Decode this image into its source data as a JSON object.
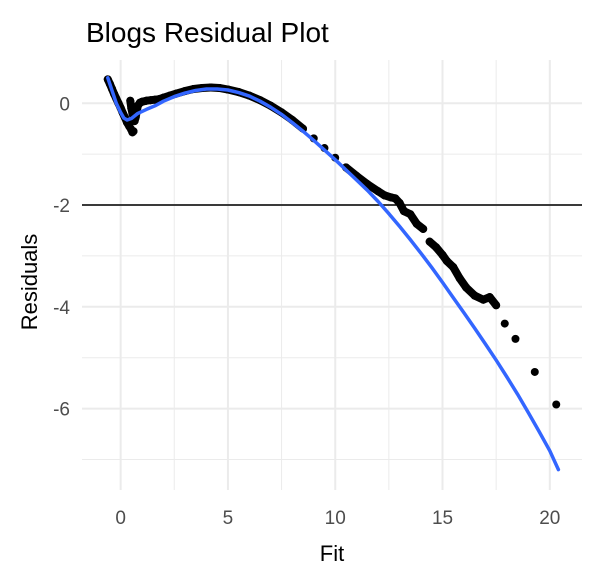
{
  "chart_data": {
    "type": "scatter",
    "title": "Blogs Residual Plot",
    "xlabel": "Fit",
    "ylabel": "Residuals",
    "xlim": [
      -1.8,
      21.5
    ],
    "ylim": [
      -7.6,
      0.85
    ],
    "x_ticks": [
      0,
      5,
      10,
      15,
      20
    ],
    "y_ticks": [
      0,
      -2,
      -4,
      -6
    ],
    "grid": true,
    "reference_line": {
      "y": -2,
      "color": "#000000"
    },
    "colors": {
      "points": "#000000",
      "smooth": "#3366FF",
      "grid": "#EBEBEB"
    },
    "series": [
      {
        "type": "scatter",
        "points": [
          [
            -0.6,
            0.47
          ],
          [
            -0.5,
            0.38
          ],
          [
            -0.4,
            0.28
          ],
          [
            -0.3,
            0.18
          ],
          [
            -0.2,
            0.09
          ],
          [
            -0.1,
            0.0
          ],
          [
            0.0,
            -0.09
          ],
          [
            0.1,
            -0.19
          ],
          [
            0.2,
            -0.28
          ],
          [
            0.3,
            -0.38
          ],
          [
            0.4,
            -0.45
          ],
          [
            0.5,
            -0.52
          ],
          [
            0.55,
            -0.57
          ],
          [
            0.6,
            -0.55
          ],
          [
            0.45,
            0.05
          ],
          [
            0.5,
            -0.1
          ],
          [
            0.55,
            -0.2
          ],
          [
            0.65,
            -0.35
          ],
          [
            0.7,
            -0.28
          ],
          [
            0.8,
            -0.05
          ],
          [
            0.9,
            0.01
          ],
          [
            1.0,
            0.03
          ],
          [
            1.2,
            0.05
          ],
          [
            1.4,
            0.06
          ],
          [
            1.6,
            0.07
          ],
          [
            1.8,
            0.08
          ],
          [
            2.0,
            0.11
          ],
          [
            2.3,
            0.15
          ],
          [
            2.6,
            0.19
          ],
          [
            3.0,
            0.24
          ],
          [
            3.4,
            0.28
          ],
          [
            3.8,
            0.3
          ],
          [
            4.2,
            0.31
          ],
          [
            4.6,
            0.3
          ],
          [
            5.0,
            0.27
          ],
          [
            5.5,
            0.22
          ],
          [
            6.0,
            0.15
          ],
          [
            6.5,
            0.06
          ],
          [
            7.0,
            -0.05
          ],
          [
            7.5,
            -0.18
          ],
          [
            8.0,
            -0.33
          ],
          [
            8.5,
            -0.5
          ],
          [
            9.0,
            -0.69
          ],
          [
            9.5,
            -0.88
          ],
          [
            10.0,
            -1.07
          ],
          [
            10.5,
            -1.26
          ],
          [
            11.0,
            -1.43
          ],
          [
            11.5,
            -1.59
          ],
          [
            12.0,
            -1.73
          ],
          [
            12.3,
            -1.81
          ],
          [
            12.6,
            -1.85
          ],
          [
            12.8,
            -1.87
          ],
          [
            13.0,
            -1.96
          ],
          [
            13.2,
            -2.12
          ],
          [
            13.5,
            -2.18
          ],
          [
            13.8,
            -2.37
          ],
          [
            14.1,
            -2.47
          ],
          [
            14.4,
            -2.72
          ],
          [
            14.7,
            -2.83
          ],
          [
            15.0,
            -2.98
          ],
          [
            15.2,
            -3.1
          ],
          [
            15.5,
            -3.22
          ],
          [
            15.8,
            -3.44
          ],
          [
            16.1,
            -3.62
          ],
          [
            16.5,
            -3.78
          ],
          [
            16.9,
            -3.86
          ],
          [
            17.2,
            -3.81
          ],
          [
            17.5,
            -3.97
          ],
          [
            17.9,
            -4.33
          ],
          [
            18.4,
            -4.63
          ],
          [
            19.3,
            -5.28
          ],
          [
            20.3,
            -5.92
          ]
        ]
      },
      {
        "type": "line",
        "name": "smooth",
        "points": [
          [
            -0.6,
            0.5
          ],
          [
            -0.4,
            0.25
          ],
          [
            -0.2,
            0.0
          ],
          [
            0.0,
            -0.18
          ],
          [
            0.15,
            -0.29
          ],
          [
            0.3,
            -0.33
          ],
          [
            0.5,
            -0.3
          ],
          [
            0.8,
            -0.2
          ],
          [
            1.2,
            -0.12
          ],
          [
            1.6,
            -0.05
          ],
          [
            2.0,
            0.04
          ],
          [
            2.5,
            0.13
          ],
          [
            3.0,
            0.2
          ],
          [
            3.5,
            0.25
          ],
          [
            4.0,
            0.28
          ],
          [
            4.5,
            0.28
          ],
          [
            5.0,
            0.26
          ],
          [
            5.5,
            0.21
          ],
          [
            6.0,
            0.14
          ],
          [
            6.5,
            0.04
          ],
          [
            7.0,
            -0.08
          ],
          [
            7.5,
            -0.22
          ],
          [
            8.0,
            -0.38
          ],
          [
            8.5,
            -0.55
          ],
          [
            9.0,
            -0.73
          ],
          [
            9.5,
            -0.92
          ],
          [
            10.0,
            -1.11
          ],
          [
            10.5,
            -1.31
          ],
          [
            11.0,
            -1.51
          ],
          [
            11.5,
            -1.71
          ],
          [
            12.0,
            -1.93
          ],
          [
            12.5,
            -2.17
          ],
          [
            13.0,
            -2.42
          ],
          [
            13.5,
            -2.68
          ],
          [
            14.0,
            -2.95
          ],
          [
            14.5,
            -3.23
          ],
          [
            15.0,
            -3.52
          ],
          [
            15.5,
            -3.82
          ],
          [
            16.0,
            -4.12
          ],
          [
            16.5,
            -4.42
          ],
          [
            17.0,
            -4.73
          ],
          [
            17.5,
            -5.05
          ],
          [
            18.0,
            -5.38
          ],
          [
            18.5,
            -5.72
          ],
          [
            19.0,
            -6.08
          ],
          [
            19.5,
            -6.45
          ],
          [
            20.0,
            -6.83
          ],
          [
            20.4,
            -7.2
          ]
        ]
      }
    ]
  }
}
